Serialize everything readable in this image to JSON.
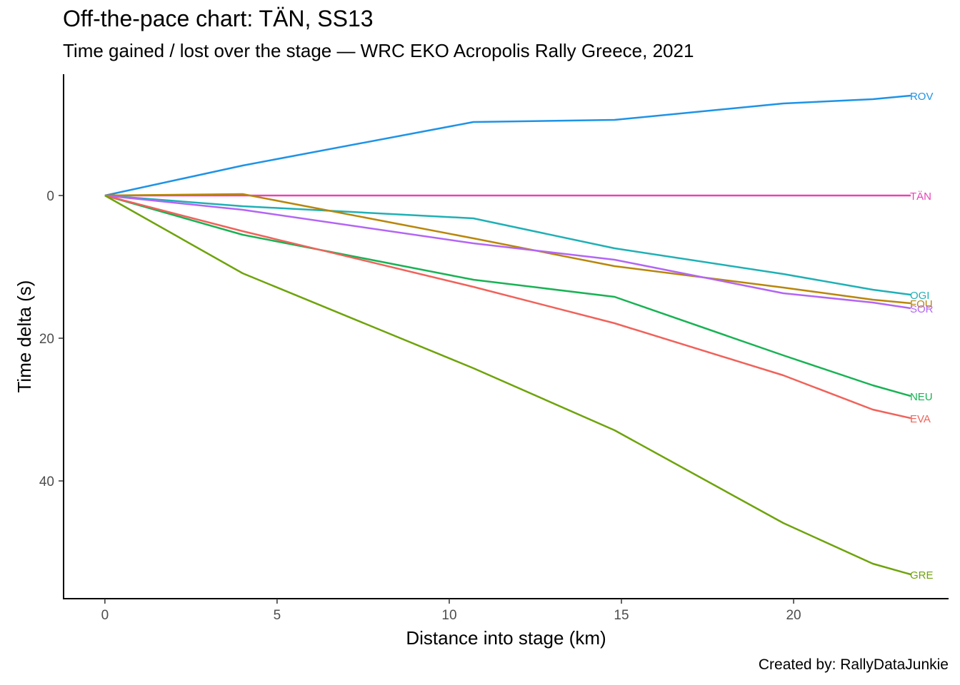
{
  "title": "Off-the-pace chart: TÄN, SS13",
  "subtitle": "Time gained / lost over the stage — WRC EKO Acropolis Rally Greece, 2021",
  "caption": "Created by: RallyDataJunkie",
  "chart_data": {
    "type": "line",
    "xlabel": "Distance into stage (km)",
    "ylabel": "Time delta (s)",
    "xlim": [
      -1.2,
      24.5
    ],
    "ylim": [
      -17,
      56.5
    ],
    "y_reversed": true,
    "xticks": [
      0,
      5,
      10,
      15,
      20
    ],
    "yticks": [
      0,
      20,
      40
    ],
    "grid": false,
    "legend": "none (direct end-of-line labels)",
    "series": [
      {
        "name": "ROV",
        "color": "#1e93e6",
        "x": [
          0,
          4.0,
          10.7,
          14.8,
          19.7,
          22.3,
          23.4
        ],
        "y": [
          0,
          -4.2,
          -10.3,
          -10.6,
          -12.9,
          -13.5,
          -14.0
        ]
      },
      {
        "name": "TÄN",
        "color": "#e843b8",
        "x": [
          0,
          4.0,
          10.7,
          14.8,
          19.7,
          22.3,
          23.4
        ],
        "y": [
          0,
          0,
          0,
          0,
          0,
          0,
          0
        ]
      },
      {
        "name": "OGI",
        "color": "#1fb0b5",
        "x": [
          0,
          4.0,
          10.7,
          14.8,
          19.7,
          22.3,
          23.4
        ],
        "y": [
          0,
          1.5,
          3.2,
          7.4,
          11.0,
          13.2,
          13.9
        ]
      },
      {
        "name": "FOU",
        "color": "#b8860b",
        "x": [
          0,
          4.0,
          10.7,
          14.8,
          19.7,
          22.3,
          23.4
        ],
        "y": [
          0,
          -0.2,
          6.0,
          9.9,
          12.9,
          14.6,
          15.1
        ]
      },
      {
        "name": "SOR",
        "color": "#b365f5",
        "x": [
          0,
          4.0,
          10.7,
          14.8,
          19.7,
          22.3,
          23.4
        ],
        "y": [
          0,
          2.0,
          6.7,
          9.0,
          13.7,
          15.0,
          15.8
        ]
      },
      {
        "name": "NEU",
        "color": "#18b254",
        "x": [
          0,
          4.0,
          10.7,
          14.8,
          19.7,
          22.3,
          23.4
        ],
        "y": [
          0,
          5.5,
          11.8,
          14.2,
          22.4,
          26.6,
          28.1
        ]
      },
      {
        "name": "EVA",
        "color": "#f0625a",
        "x": [
          0,
          4.0,
          10.7,
          14.8,
          19.7,
          22.3,
          23.4
        ],
        "y": [
          0,
          5.0,
          12.8,
          17.9,
          25.2,
          30.0,
          31.2
        ]
      },
      {
        "name": "GRE",
        "color": "#6ea30a",
        "x": [
          0,
          4.0,
          10.7,
          14.8,
          19.7,
          22.3,
          23.4
        ],
        "y": [
          0,
          10.9,
          24.2,
          32.9,
          45.9,
          51.6,
          53.1
        ]
      }
    ]
  }
}
